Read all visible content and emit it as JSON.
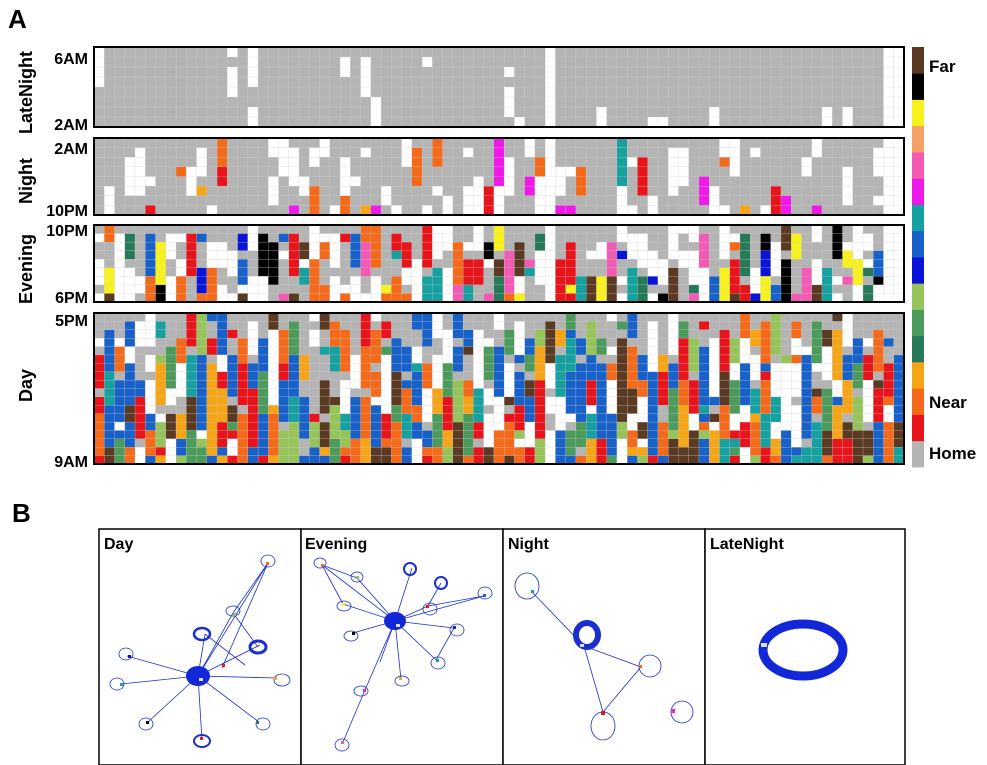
{
  "panel_a": {
    "label": "A",
    "rows": [
      {
        "name": "LateNight",
        "top_label": "6AM",
        "bottom_label": "2AM"
      },
      {
        "name": "Night",
        "top_label": "2AM",
        "bottom_label": "10PM"
      },
      {
        "name": "Evening",
        "top_label": "10PM",
        "bottom_label": "6PM"
      },
      {
        "name": "Day",
        "top_label": "5PM",
        "bottom_label": "9AM"
      }
    ],
    "colorbar": {
      "top_label": "Far",
      "near_label": "Near",
      "bottom_label": "Home",
      "colors": [
        "#b4b4b4",
        "#e8141b",
        "#f46a1a",
        "#f6a516",
        "#267a5a",
        "#4c9a5c",
        "#96c45a",
        "#0a14d8",
        "#1861c8",
        "#16a0a0",
        "#ee1ae8",
        "#f25ab4",
        "#f4a066",
        "#f8f21c",
        "#000000",
        "#5a3a22"
      ]
    },
    "chart_data": {
      "type": "heatmap",
      "x_columns": 79,
      "y_categories": [
        "9AM-5PM (Day)",
        "6PM-10PM (Evening)",
        "10PM-2AM (Night)",
        "2AM-6AM (LateNight)"
      ],
      "value_scale": "distance from home category: 0 = Home ... 15 = Far",
      "note": "cell colors estimated; white = missing data"
    }
  },
  "panel_b": {
    "label": "B",
    "networks": [
      {
        "name": "Day"
      },
      {
        "name": "Evening"
      },
      {
        "name": "Night"
      },
      {
        "name": "LateNight"
      }
    ]
  }
}
